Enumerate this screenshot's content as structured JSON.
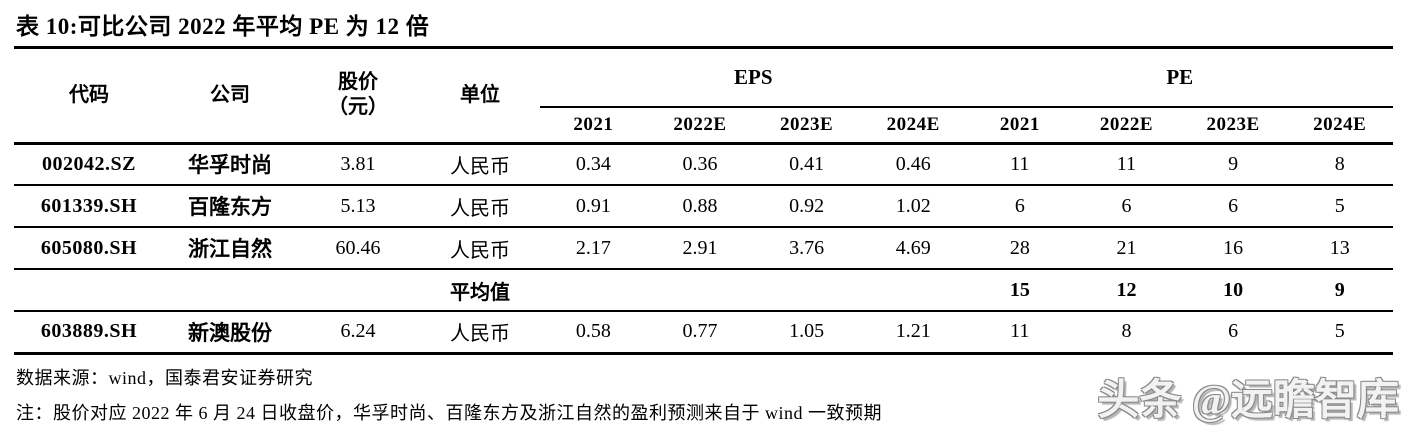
{
  "title": "表 10:可比公司 2022 年平均 PE 为 12 倍",
  "table": {
    "headers": {
      "code": "代码",
      "company": "公司",
      "price_line1": "股价",
      "price_line2": "（元）",
      "unit": "单位",
      "eps_group": "EPS",
      "pe_group": "PE",
      "eps_years": [
        "2021",
        "2022E",
        "2023E",
        "2024E"
      ],
      "pe_years": [
        "2021",
        "2022E",
        "2023E",
        "2024E"
      ]
    },
    "rows": [
      {
        "code": "002042.SZ",
        "company": "华孚时尚",
        "price": "3.81",
        "unit": "人民币",
        "eps": [
          "0.34",
          "0.36",
          "0.41",
          "0.46"
        ],
        "pe": [
          "11",
          "11",
          "9",
          "8"
        ],
        "is_average": false
      },
      {
        "code": "601339.SH",
        "company": "百隆东方",
        "price": "5.13",
        "unit": "人民币",
        "eps": [
          "0.91",
          "0.88",
          "0.92",
          "1.02"
        ],
        "pe": [
          "6",
          "6",
          "6",
          "5"
        ],
        "is_average": false
      },
      {
        "code": "605080.SH",
        "company": "浙江自然",
        "price": "60.46",
        "unit": "人民币",
        "eps": [
          "2.17",
          "2.91",
          "3.76",
          "4.69"
        ],
        "pe": [
          "28",
          "21",
          "16",
          "13"
        ],
        "is_average": false
      },
      {
        "code": "",
        "company": "",
        "price": "",
        "unit": "平均值",
        "eps": [
          "",
          "",
          "",
          ""
        ],
        "pe": [
          "15",
          "12",
          "10",
          "9"
        ],
        "is_average": true
      },
      {
        "code": "603889.SH",
        "company": "新澳股份",
        "price": "6.24",
        "unit": "人民币",
        "eps": [
          "0.58",
          "0.77",
          "1.05",
          "1.21"
        ],
        "pe": [
          "11",
          "8",
          "6",
          "5"
        ],
        "is_average": false
      }
    ]
  },
  "footer": {
    "source": "数据来源：wind，国泰君安证券研究",
    "note": "注：股价对应 2022 年 6 月 24 日收盘价，华孚时尚、百隆东方及浙江自然的盈利预测来自于 wind 一致预期"
  },
  "watermark": "头条 @远瞻智库",
  "colors": {
    "text": "#000000",
    "background": "#ffffff",
    "rule": "#000000",
    "watermark": "#8a8a8a"
  }
}
